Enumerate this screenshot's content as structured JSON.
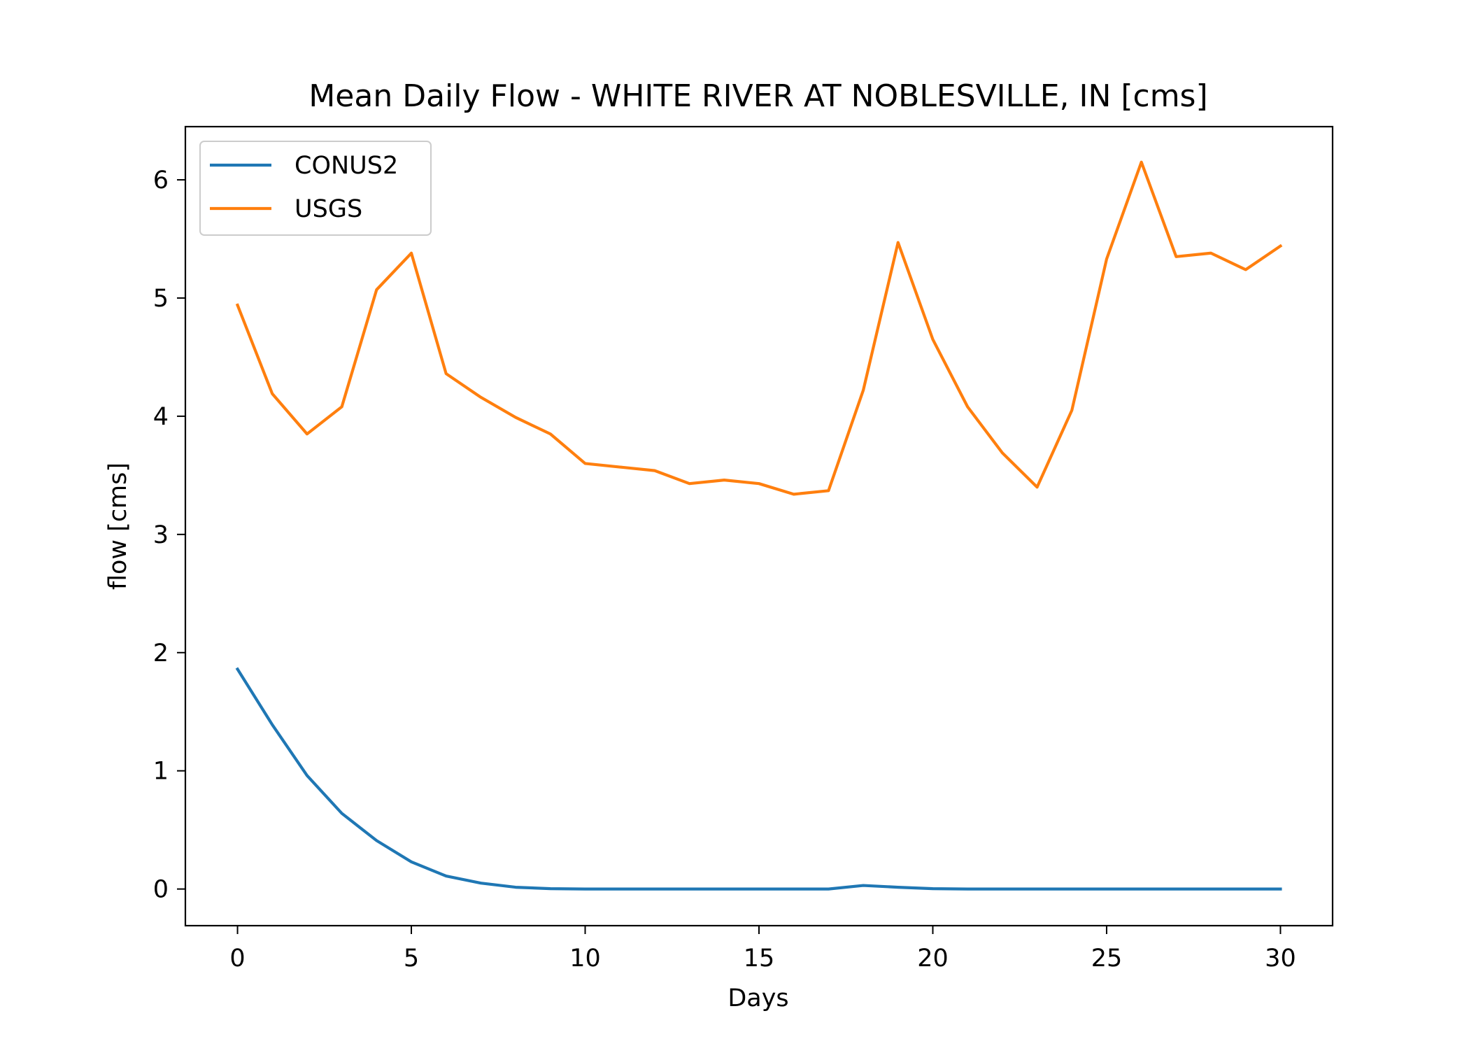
{
  "chart_data": {
    "type": "line",
    "title": "Mean Daily Flow - WHITE RIVER AT NOBLESVILLE, IN [cms]",
    "xlabel": "Days",
    "ylabel": "flow [cms]",
    "xlim": [
      -1.5,
      31.5
    ],
    "ylim": [
      -0.31,
      6.45
    ],
    "xticks": [
      0,
      5,
      10,
      15,
      20,
      25,
      30
    ],
    "yticks": [
      0,
      1,
      2,
      3,
      4,
      5,
      6
    ],
    "grid": false,
    "legend_position": "upper-left",
    "x": [
      0,
      1,
      2,
      3,
      4,
      5,
      6,
      7,
      8,
      9,
      10,
      11,
      12,
      13,
      14,
      15,
      16,
      17,
      18,
      19,
      20,
      21,
      22,
      23,
      24,
      25,
      26,
      27,
      28,
      29,
      30
    ],
    "series": [
      {
        "name": "CONUS2",
        "color": "#1f77b4",
        "values": [
          1.86,
          1.39,
          0.96,
          0.64,
          0.41,
          0.23,
          0.11,
          0.05,
          0.015,
          0.003,
          0.0,
          0.0,
          0.0,
          0.0,
          0.0,
          0.0,
          0.0,
          0.0,
          0.03,
          0.015,
          0.003,
          0.0,
          0.0,
          0.0,
          0.0,
          0.0,
          0.0,
          0.0,
          0.0,
          0.0,
          0.0
        ]
      },
      {
        "name": "USGS",
        "color": "#ff7f0e",
        "values": [
          4.94,
          4.19,
          3.85,
          4.08,
          5.07,
          5.38,
          4.36,
          4.16,
          3.99,
          3.85,
          3.6,
          3.57,
          3.54,
          3.43,
          3.46,
          3.43,
          3.34,
          3.37,
          4.22,
          5.47,
          4.65,
          4.08,
          3.69,
          3.4,
          4.05,
          5.33,
          6.15,
          5.35,
          5.38,
          5.24,
          5.44
        ]
      }
    ]
  }
}
